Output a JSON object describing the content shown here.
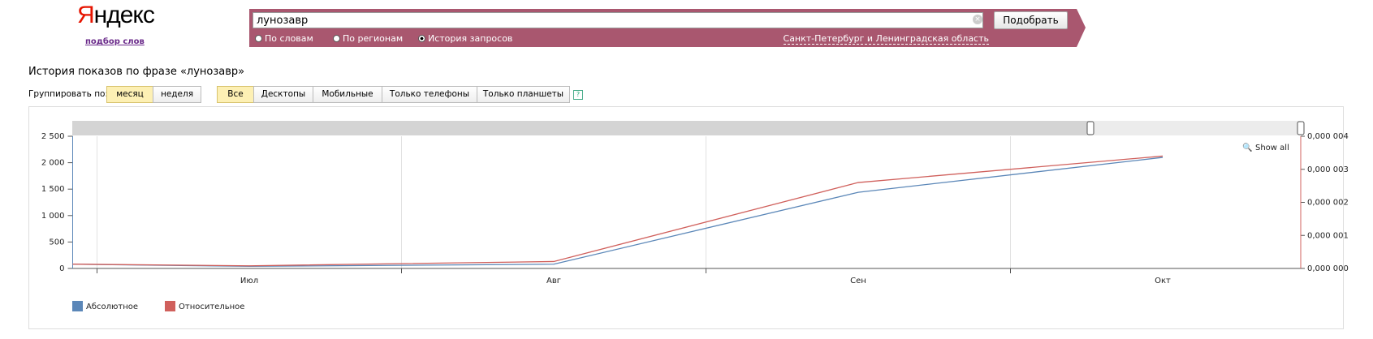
{
  "header": {
    "logo": "Яндекс",
    "link": "подбор слов"
  },
  "search": {
    "query": "лунозавр",
    "button": "Подобрать",
    "modes": [
      "По словам",
      "По регионам",
      "История запросов"
    ],
    "region": "Санкт-Петербург и Ленинградская область"
  },
  "heading": "История показов по фразе «лунозавр»",
  "group": {
    "label": "Группировать по:",
    "options": [
      "месяц",
      "неделя"
    ]
  },
  "devices": [
    "Все",
    "Десктопы",
    "Мобильные",
    "Только телефоны",
    "Только планшеты"
  ],
  "help": "?",
  "chart_data": {
    "type": "line",
    "show_all": "Show all",
    "categories": [
      null,
      "Июл",
      "Авг",
      "Сен",
      "Окт"
    ],
    "series": [
      {
        "name": "Абсолютное",
        "color": "#5b87b8",
        "values": [
          80,
          40,
          80,
          1440,
          2100
        ]
      },
      {
        "name": "Относительное",
        "color": "#d0605c",
        "axis": "y2",
        "values": [
          1.3e-07,
          8e-08,
          2.1e-07,
          2.6e-06,
          3.4e-06
        ]
      }
    ],
    "ylim": [
      0,
      2500
    ],
    "yticks": [
      0,
      {
        "value": 500,
        "label": "500"
      },
      {
        "value": 1000,
        "label": "1 000"
      },
      {
        "value": 1500,
        "label": "1 500"
      },
      {
        "value": 2000,
        "label": "2 000"
      },
      {
        "value": 2500,
        "label": "2 500"
      }
    ],
    "y2lim": [
      0,
      4e-06
    ],
    "y2ticks": [
      {
        "value": 0,
        "label": "0,000 000"
      },
      {
        "value": 1e-06,
        "label": "0,000 001"
      },
      {
        "value": 2e-06,
        "label": "0,000 002"
      },
      {
        "value": 3e-06,
        "label": "0,000 003"
      },
      {
        "value": 4e-06,
        "label": "0,000 004"
      }
    ],
    "grid": true
  }
}
